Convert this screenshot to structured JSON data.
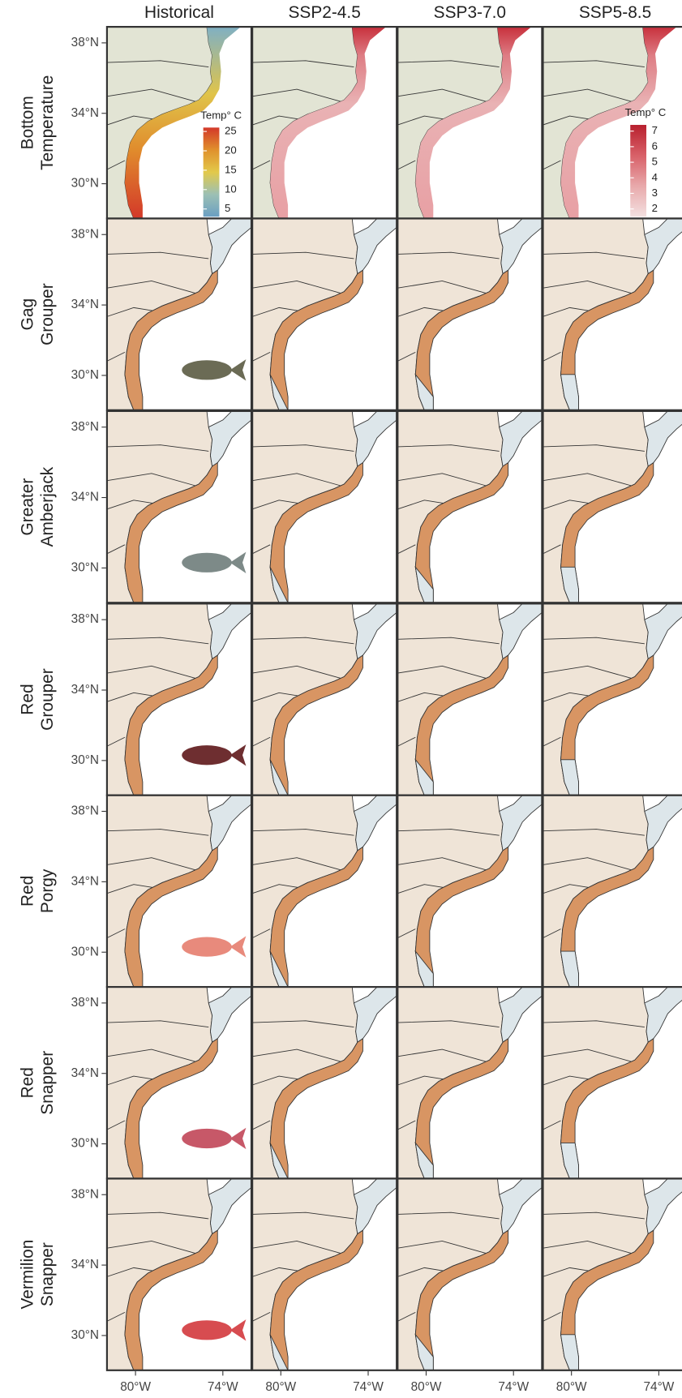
{
  "columns": [
    "Historical",
    "SSP2-4.5",
    "SSP3-7.0",
    "SSP5-8.5"
  ],
  "rows": [
    [
      "Bottom",
      "Temperature"
    ],
    [
      "Gag",
      "Grouper"
    ],
    [
      "Greater",
      "Amberjack"
    ],
    [
      "Red",
      "Grouper"
    ],
    [
      "Red",
      "Porgy"
    ],
    [
      "Red",
      "Snapper"
    ],
    [
      "Vermilion",
      "Snapper"
    ]
  ],
  "lat_ticks": [
    {
      "value": 38,
      "label": "38°N"
    },
    {
      "value": 34,
      "label": "34°N"
    },
    {
      "value": 30,
      "label": "30°N"
    }
  ],
  "lon_ticks": [
    {
      "value": -80,
      "label": "80°W"
    },
    {
      "value": -74,
      "label": "74°W"
    }
  ],
  "legends": [
    {
      "title": "Temp° C",
      "ticks": [
        25,
        20,
        15,
        10,
        5
      ],
      "lim": [
        3,
        26
      ],
      "colors": [
        "#6a9fc2",
        "#9cc0b4",
        "#e2c94a",
        "#e0902c",
        "#d3382a"
      ]
    },
    {
      "title": "Temp° C",
      "ticks": [
        7,
        6,
        5,
        4,
        3,
        2
      ],
      "lim": [
        1.5,
        7.4
      ],
      "colors": [
        "#f3e0e0",
        "#e8a9ab",
        "#d86068",
        "#b8202e"
      ]
    }
  ]
}
